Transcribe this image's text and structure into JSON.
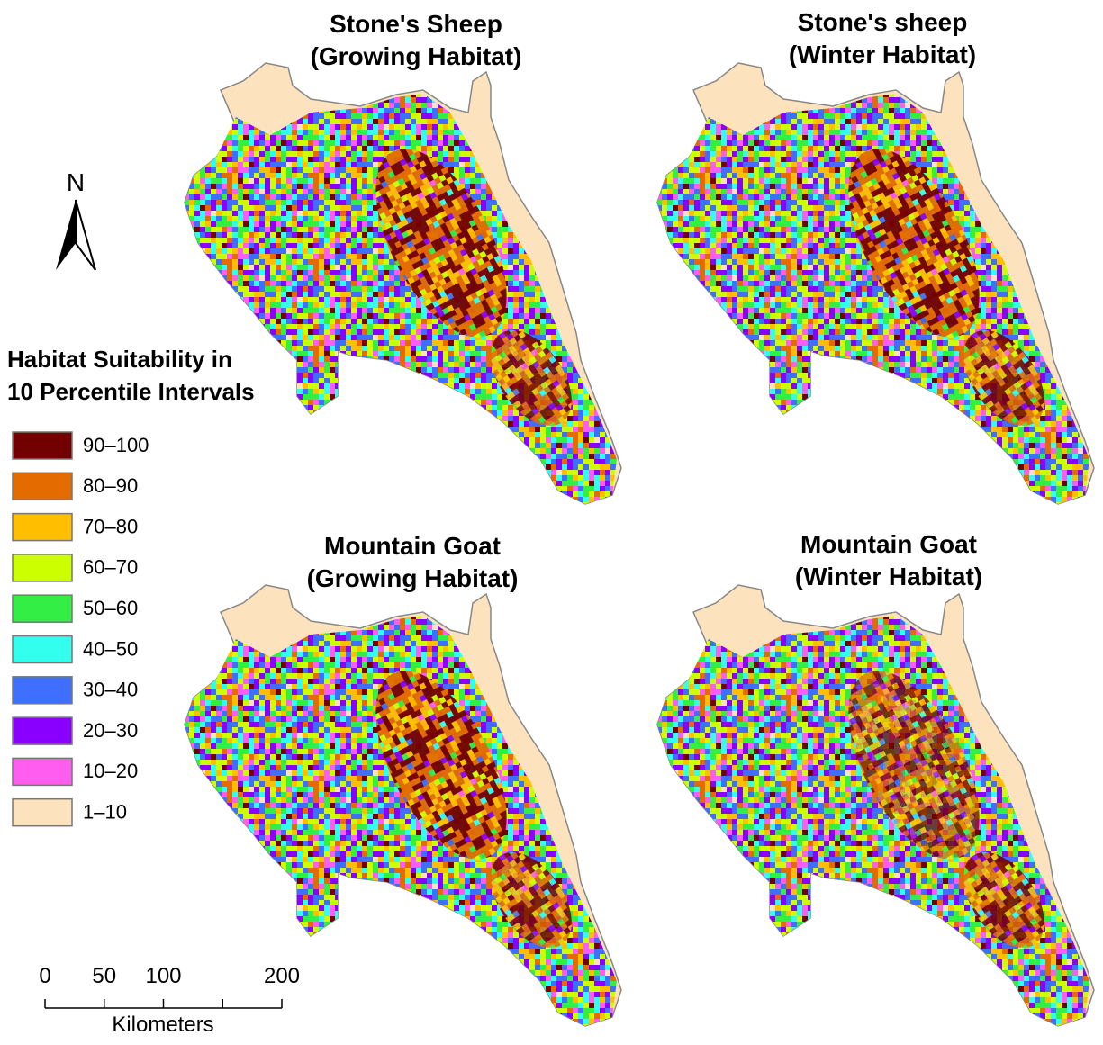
{
  "maps": [
    {
      "title_lines": [
        "Stone's Sheep",
        "(Growing Habitat)"
      ]
    },
    {
      "title_lines": [
        "Stone's sheep",
        "(Winter Habitat)"
      ]
    },
    {
      "title_lines": [
        "Mountain Goat",
        "(Growing Habitat)"
      ]
    },
    {
      "title_lines": [
        "Mountain Goat",
        "(Winter Habitat)"
      ]
    }
  ],
  "north_arrow": {
    "label": "N"
  },
  "legend": {
    "title_lines": [
      "Habitat Suitability in",
      "10 Percentile Intervals"
    ],
    "items": [
      {
        "label": "90–100",
        "color": "#730000"
      },
      {
        "label": "80–90",
        "color": "#e36b00"
      },
      {
        "label": "70–80",
        "color": "#ffbf00"
      },
      {
        "label": "60–70",
        "color": "#ccff00"
      },
      {
        "label": "50–60",
        "color": "#33ee44"
      },
      {
        "label": "40–50",
        "color": "#33ffee"
      },
      {
        "label": "30–40",
        "color": "#3f6fff"
      },
      {
        "label": "20–30",
        "color": "#8a00ff"
      },
      {
        "label": "10–20",
        "color": "#ff5cf0"
      },
      {
        "label": "1–10",
        "color": "#fde3bd"
      }
    ]
  },
  "scale_bar": {
    "lim": [
      0,
      200
    ],
    "ticks": [
      0,
      50,
      100,
      200
    ],
    "minor_ticks": [
      150
    ],
    "unit": "Kilometers"
  }
}
